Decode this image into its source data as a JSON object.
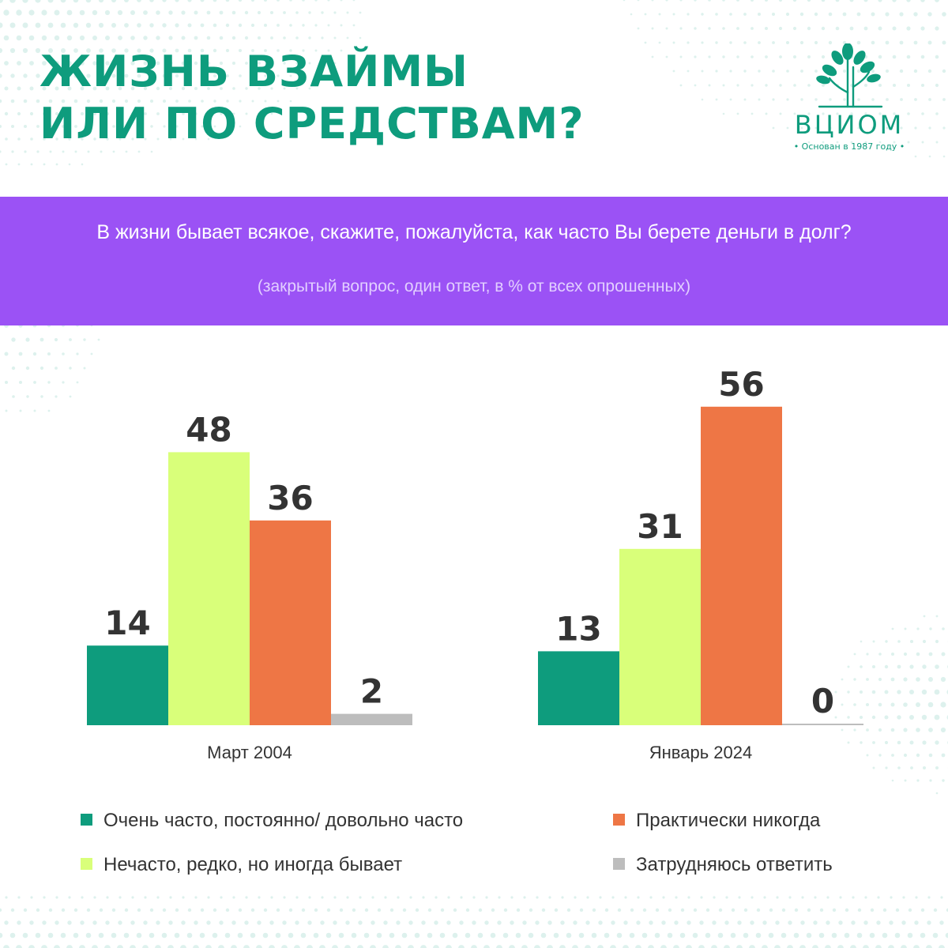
{
  "header": {
    "title_line1": "ЖИЗНЬ ВЗАЙМЫ",
    "title_line2": "ИЛИ ПО СРЕДСТВАМ?"
  },
  "logo": {
    "name": "ВЦИОМ",
    "tagline": "• Основан в 1987 году •"
  },
  "banner": {
    "question": "В жизни бывает всякое, скажите, пожалуйста, как часто Вы берете деньги в долг?",
    "note": "(закрытый вопрос, один ответ, в % от всех опрошенных)"
  },
  "colors": {
    "brand": "#0e9c7d",
    "banner": "#9b52f5",
    "series": [
      "#0e9c7d",
      "#d9ff7a",
      "#ee7645",
      "#bdbdbd"
    ]
  },
  "chart_data": {
    "type": "bar",
    "categories": [
      "Март 2004",
      "Январь 2024"
    ],
    "series": [
      {
        "name": "Очень часто, постоянно/ довольно часто",
        "values": [
          14,
          13
        ]
      },
      {
        "name": "Нечасто, редко, но иногда бывает",
        "values": [
          48,
          31
        ]
      },
      {
        "name": "Практически никогда",
        "values": [
          36,
          56
        ]
      },
      {
        "name": "Затрудняюсь ответить",
        "values": [
          2,
          0
        ]
      }
    ],
    "ylim": [
      0,
      56
    ],
    "grid": false,
    "legend_position": "bottom",
    "data_labels": true
  }
}
